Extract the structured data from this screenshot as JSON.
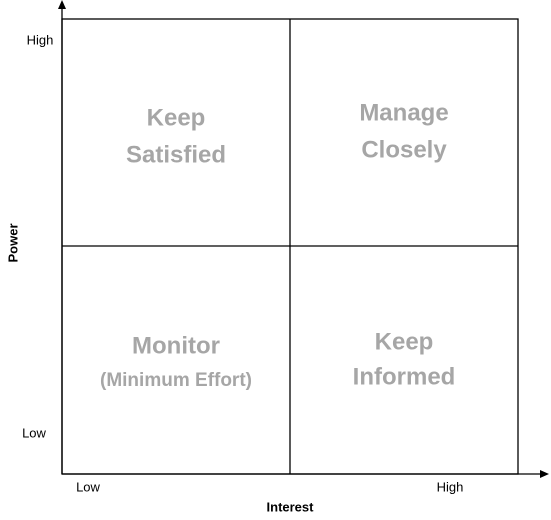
{
  "axes": {
    "y_label": "Power",
    "y_high": "High",
    "y_low": "Low",
    "x_label": "Interest",
    "x_low": "Low",
    "x_high": "High"
  },
  "quadrants": [
    {
      "lines": [
        "Keep",
        "Satisfied"
      ]
    },
    {
      "lines": [
        "Manage",
        "Closely"
      ]
    },
    {
      "lines": [
        "Monitor",
        "(Minimum Effort)"
      ]
    },
    {
      "lines": [
        "Keep",
        "Informed"
      ]
    }
  ]
}
